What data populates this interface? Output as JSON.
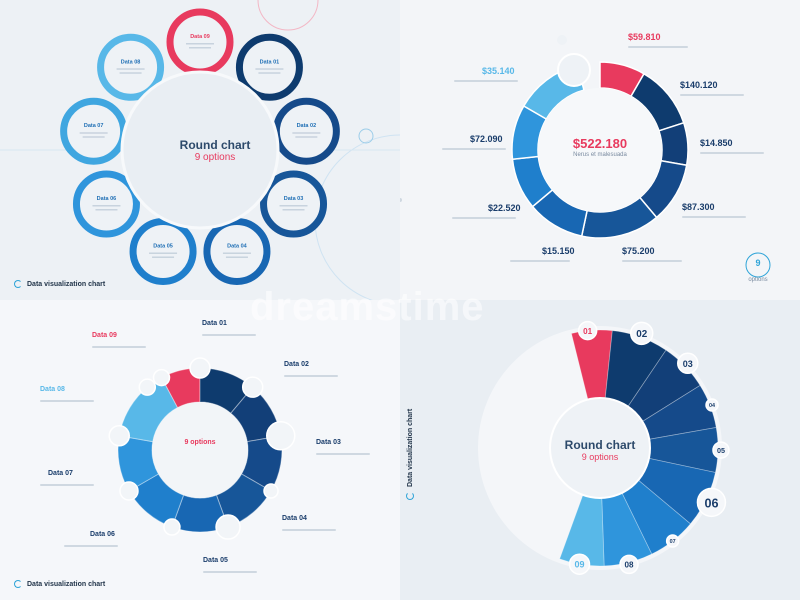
{
  "footer_text": "Data visualization chart",
  "watermark": "dreamstime",
  "colors": {
    "accent": "#e83a5e",
    "navy": "#0e3b6e",
    "blue": "#1867b3",
    "light_blue": "#58b8e8"
  },
  "chart_data": [
    {
      "type": "pie",
      "title": "Round chart",
      "subtitle": "9 options",
      "categories": [
        "Data 09",
        "Data 01",
        "Data 02",
        "Data 03",
        "Data 04",
        "Data 05",
        "Data 06",
        "Data 07",
        "Data 08"
      ]
    },
    {
      "type": "pie",
      "center_value": "$522.180",
      "center_label": "Nerus et malesuada",
      "values": [
        "$59.810",
        "$140.120",
        "$14.850",
        "$87.300",
        "$75.200",
        "$15.150",
        "$22.520",
        "$72.090",
        "$35.140"
      ],
      "corner_number": "9",
      "corner_label": "options"
    },
    {
      "type": "pie",
      "subtitle": "9 options",
      "categories": [
        "Data 01",
        "Data 02",
        "Data 03",
        "Data 04",
        "Data 05",
        "Data 06",
        "Data 07",
        "Data 08",
        "Data 09"
      ]
    },
    {
      "type": "pie",
      "title": "Round chart",
      "subtitle": "9 options",
      "categories": [
        "01",
        "02",
        "03",
        "04",
        "05",
        "06",
        "07",
        "08",
        "09"
      ]
    }
  ]
}
